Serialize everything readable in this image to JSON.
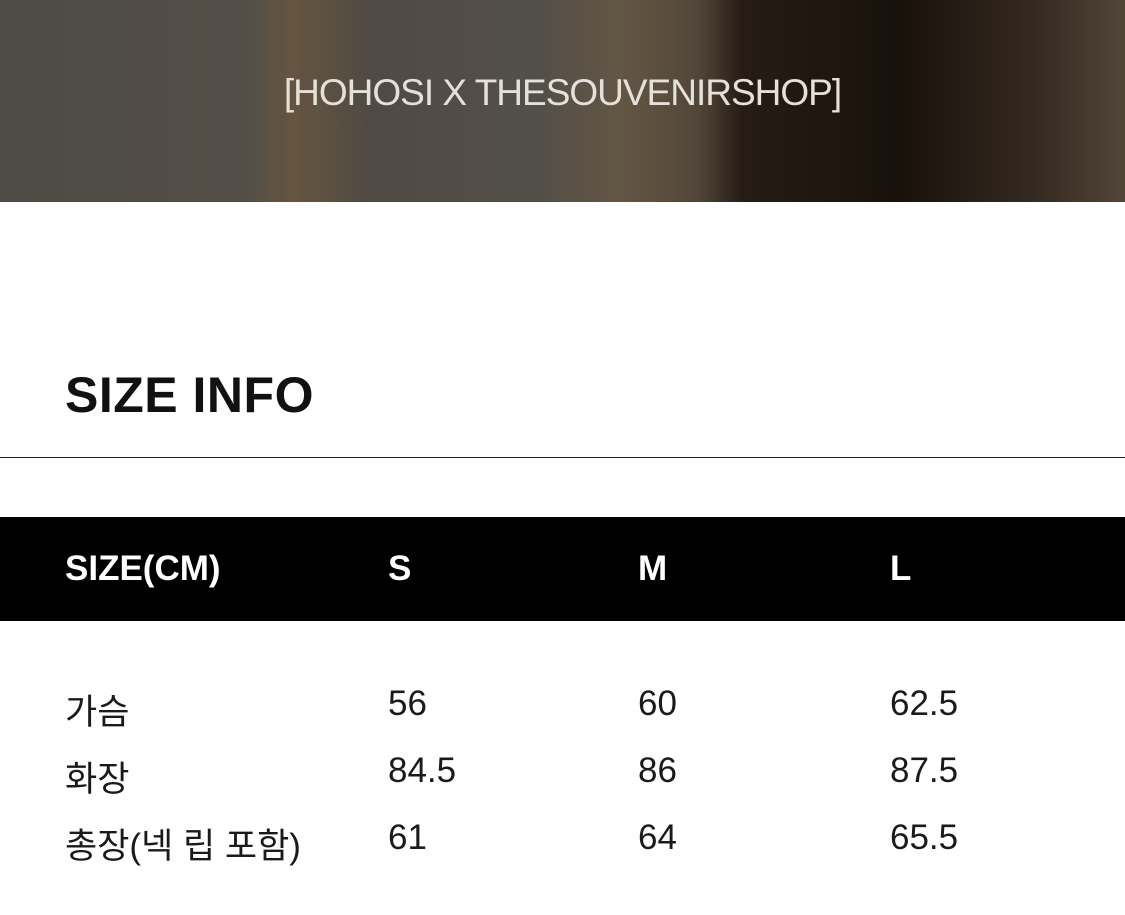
{
  "banner": {
    "title": "[HOHOSI X THESOUVENIRSHOP]"
  },
  "section": {
    "title": "SIZE INFO"
  },
  "table": {
    "headers": [
      "SIZE(CM)",
      "S",
      "M",
      "L"
    ],
    "rows": [
      [
        "가슴",
        "56",
        "60",
        "62.5"
      ],
      [
        "화장",
        "84.5",
        "86",
        "87.5"
      ],
      [
        "총장(넥 립 포함)",
        "61",
        "64",
        "65.5"
      ]
    ]
  }
}
